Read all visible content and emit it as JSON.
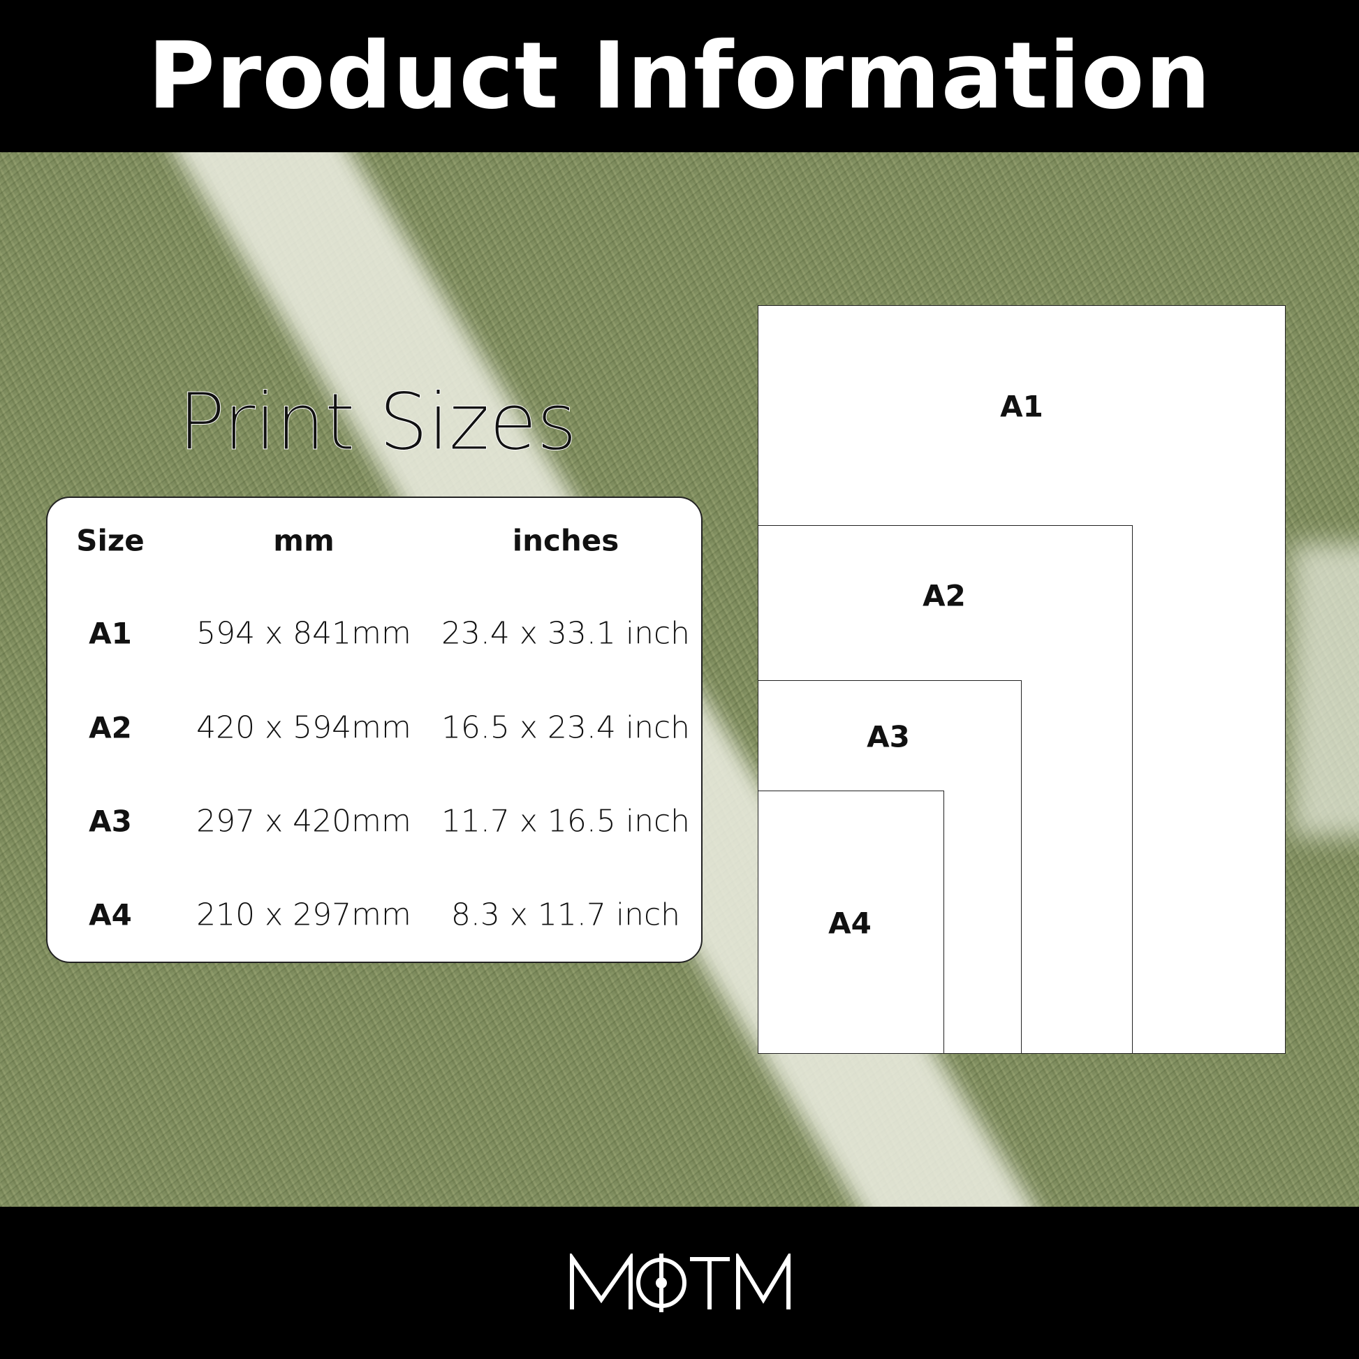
{
  "header": {
    "title": "Product Information"
  },
  "section_title": "Print Sizes",
  "table": {
    "columns": [
      "Size",
      "mm",
      "inches"
    ],
    "rows": [
      [
        "A1",
        "594 x 841mm",
        "23.4 x 33.1 inch"
      ],
      [
        "A2",
        "420 x 594mm",
        "16.5 x 23.4 inch"
      ],
      [
        "A3",
        "297 x 420mm",
        "11.7 x 16.5 inch"
      ],
      [
        "A4",
        "210 x 297mm",
        "8.3 x 11.7 inch"
      ]
    ]
  },
  "diagram": {
    "labels": [
      "A1",
      "A2",
      "A3",
      "A4"
    ]
  },
  "footer": {
    "logo_text": "MOTM"
  }
}
